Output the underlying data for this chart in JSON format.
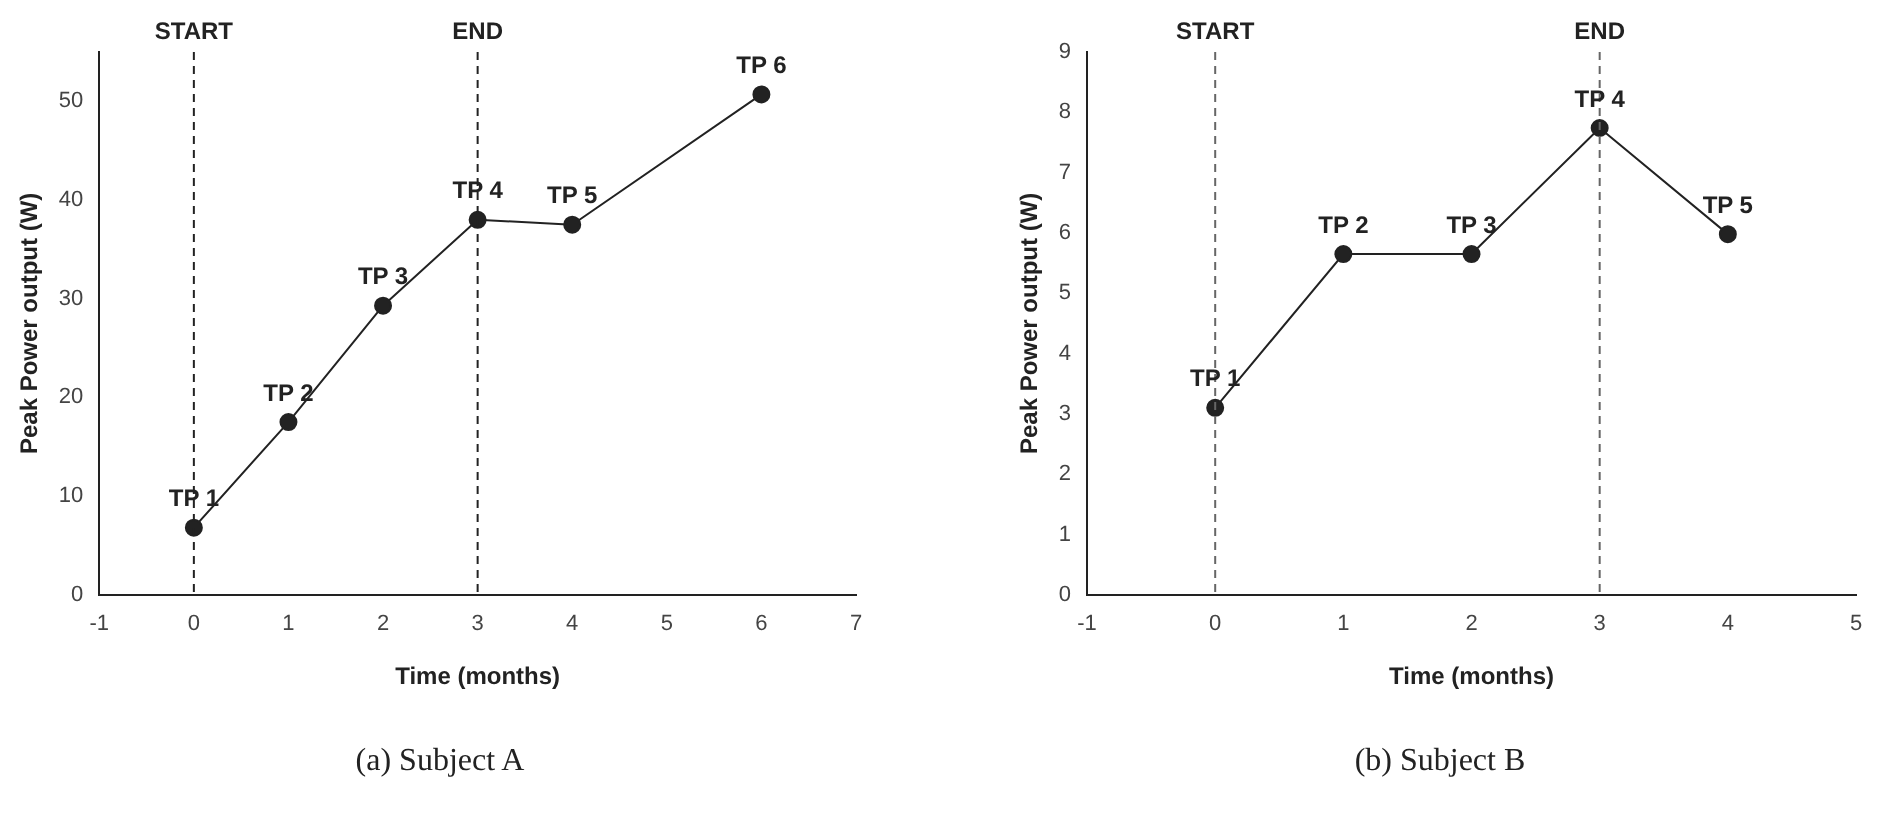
{
  "chart_data": [
    {
      "type": "line",
      "xlabel": "Time (months)",
      "ylabel": "Peak Power output (W)",
      "x": [
        0,
        1,
        2,
        3,
        4,
        6
      ],
      "series": [
        {
          "color": "#222222",
          "values": [
            6.8,
            17.5,
            29.3,
            38.0,
            37.5,
            50.7
          ]
        }
      ],
      "xlim": [
        -1,
        7
      ],
      "xticks": [
        -1,
        0,
        1,
        2,
        3,
        4,
        5,
        6,
        7
      ],
      "ylim": [
        0,
        55
      ],
      "yticks": [
        0,
        10,
        20,
        30,
        40,
        50
      ],
      "ref_lines": [
        {
          "axis": "x",
          "value": 0,
          "label": "START",
          "color": "#222222",
          "line_style": "dashed"
        },
        {
          "axis": "x",
          "value": 3,
          "label": "END",
          "color": "#222222",
          "line_style": "dashed"
        }
      ],
      "annotations": [
        {
          "text": "TP 1",
          "x": 0,
          "y": 6.8
        },
        {
          "text": "TP 2",
          "x": 1,
          "y": 17.5
        },
        {
          "text": "TP 3",
          "x": 2,
          "y": 29.3
        },
        {
          "text": "TP 4",
          "x": 3,
          "y": 38.0
        },
        {
          "text": "TP 5",
          "x": 4,
          "y": 37.5
        },
        {
          "text": "TP 6",
          "x": 6,
          "y": 50.7
        },
        "(a) Subject A"
      ],
      "marker": "circle",
      "line_style": "solid",
      "grid": false,
      "legend": false
    },
    {
      "type": "line",
      "xlabel": "Time (months)",
      "ylabel": "Peak Power output (W)",
      "x": [
        0,
        1,
        2,
        3,
        4
      ],
      "series": [
        {
          "color": "#222222",
          "values": [
            3.1,
            5.65,
            5.65,
            7.74,
            5.98
          ]
        }
      ],
      "xlim": [
        -1,
        5
      ],
      "xticks": [
        -1,
        0,
        1,
        2,
        3,
        4,
        5
      ],
      "ylim": [
        0,
        9
      ],
      "yticks": [
        0,
        1,
        2,
        3,
        4,
        5,
        6,
        7,
        8,
        9
      ],
      "ref_lines": [
        {
          "axis": "x",
          "value": 0,
          "label": "START",
          "color": "#666666",
          "line_style": "dashed"
        },
        {
          "axis": "x",
          "value": 3,
          "label": "END",
          "color": "#666666",
          "line_style": "dashed"
        }
      ],
      "annotations": [
        {
          "text": "TP 1",
          "x": 0,
          "y": 3.1
        },
        {
          "text": "TP 2",
          "x": 1,
          "y": 5.65
        },
        {
          "text": "TP 3",
          "x": 2,
          "y": 5.65
        },
        {
          "text": "TP 4",
          "x": 3,
          "y": 7.74
        },
        {
          "text": "TP 5",
          "x": 4,
          "y": 5.98
        },
        "(b) Subject B"
      ],
      "marker": "circle",
      "line_style": "solid",
      "grid": false,
      "legend": false
    }
  ]
}
